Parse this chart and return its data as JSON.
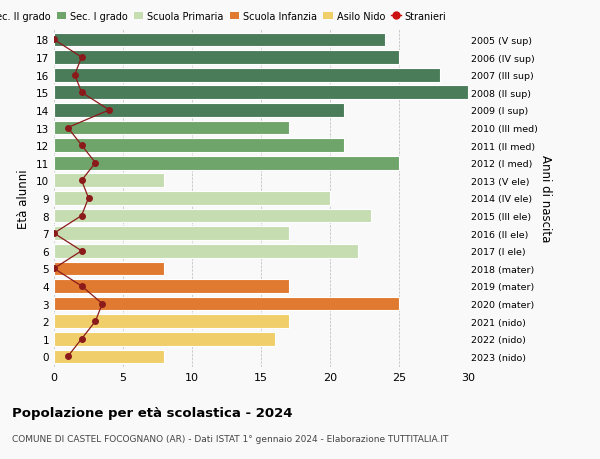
{
  "ages": [
    18,
    17,
    16,
    15,
    14,
    13,
    12,
    11,
    10,
    9,
    8,
    7,
    6,
    5,
    4,
    3,
    2,
    1,
    0
  ],
  "right_labels": [
    "2005 (V sup)",
    "2006 (IV sup)",
    "2007 (III sup)",
    "2008 (II sup)",
    "2009 (I sup)",
    "2010 (III med)",
    "2011 (II med)",
    "2012 (I med)",
    "2013 (V ele)",
    "2014 (IV ele)",
    "2015 (III ele)",
    "2016 (II ele)",
    "2017 (I ele)",
    "2018 (mater)",
    "2019 (mater)",
    "2020 (mater)",
    "2021 (nido)",
    "2022 (nido)",
    "2023 (nido)"
  ],
  "bar_values": [
    24,
    25,
    28,
    30,
    21,
    17,
    21,
    25,
    8,
    20,
    23,
    17,
    22,
    8,
    17,
    25,
    17,
    16,
    8
  ],
  "bar_colors": [
    "#4a7c59",
    "#4a7c59",
    "#4a7c59",
    "#4a7c59",
    "#4a7c59",
    "#6fa46a",
    "#6fa46a",
    "#6fa46a",
    "#c5ddb0",
    "#c5ddb0",
    "#c5ddb0",
    "#c5ddb0",
    "#c5ddb0",
    "#e07a30",
    "#e07a30",
    "#e07a30",
    "#f0cf6a",
    "#f0cf6a",
    "#f0cf6a"
  ],
  "stranieri_values": [
    0,
    2,
    1.5,
    2,
    4,
    1,
    2,
    3,
    2,
    2.5,
    2,
    0,
    2,
    0,
    2,
    3.5,
    3,
    2,
    1
  ],
  "stranieri_color": "#8b1a1a",
  "title": "Popolazione per età scolastica - 2024",
  "subtitle": "COMUNE DI CASTEL FOCOGNANO (AR) - Dati ISTAT 1° gennaio 2024 - Elaborazione TUTTITALIA.IT",
  "ylabel": "Età alunni",
  "ylabel_right": "Anni di nascita",
  "xlim": [
    0,
    30
  ],
  "bg_color": "#f9f9f9",
  "bar_height": 0.78,
  "legend_labels": [
    "Sec. II grado",
    "Sec. I grado",
    "Scuola Primaria",
    "Scuola Infanzia",
    "Asilo Nido",
    "Stranieri"
  ],
  "legend_colors": [
    "#4a7c59",
    "#6fa46a",
    "#c5ddb0",
    "#e07a30",
    "#f0cf6a",
    "#cc1111"
  ]
}
